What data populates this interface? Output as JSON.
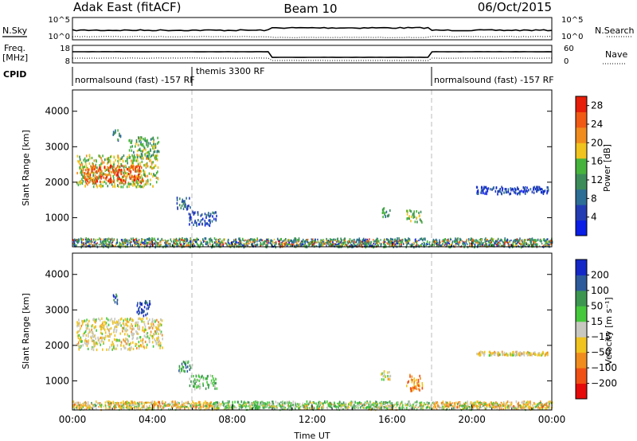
{
  "header": {
    "station": "Adak East (fitACF)",
    "beam": "Beam 10",
    "date": "06/Oct/2015"
  },
  "panels": {
    "nsky": {
      "left_label": "N.Sky",
      "right_label": "N.Search",
      "left_ticks": [
        "10^5",
        "10^0"
      ],
      "right_ticks": [
        "10^5",
        "10^0"
      ]
    },
    "freq": {
      "left_label": "Freq.",
      "left_unit": "[MHz]",
      "right_label": "Nave",
      "left_ticks": [
        "18",
        "8"
      ],
      "right_ticks": [
        "60",
        "0"
      ]
    },
    "cpid": {
      "label": "CPID",
      "segments": [
        {
          "name": "normalsound (fast) -157 RF",
          "start_hour": 0,
          "end_hour": 6
        },
        {
          "name": "themis 3300 RF",
          "start_hour": 6,
          "end_hour": 18
        },
        {
          "name": "normalsound (fast) -157 RF",
          "start_hour": 18,
          "end_hour": 24
        }
      ]
    }
  },
  "colors": {
    "power_scale": [
      "#0a1ee6",
      "#233cb4",
      "#2d6e96",
      "#3c8c5a",
      "#46b43c",
      "#f0c31e",
      "#f08c1e",
      "#f05a14",
      "#e61e0a"
    ],
    "velocity_scale": [
      "#e60a0a",
      "#f05014",
      "#f08c1e",
      "#f0c31e",
      "#c8c8c0",
      "#46c83c",
      "#3c9650",
      "#2d5a9b",
      "#1428c8"
    ]
  },
  "chart_data": [
    {
      "type": "heatmap",
      "name": "power",
      "xlabel": "",
      "ylabel": "Slant Range [km]",
      "xlim": [
        0,
        24
      ],
      "ylim": [
        180,
        4600
      ],
      "yticks": [
        1000,
        2000,
        3000,
        4000
      ],
      "colorbar": {
        "label": "Power [dB]",
        "ticks": [
          4,
          8,
          12,
          16,
          20,
          24,
          28
        ],
        "range": [
          0,
          30
        ]
      },
      "regions": [
        {
          "x0": 0.2,
          "x1": 4.3,
          "y0": 1900,
          "y1": 2800,
          "level": 0.55
        },
        {
          "x0": 0.5,
          "x1": 3.5,
          "y0": 2000,
          "y1": 2500,
          "level": 0.85
        },
        {
          "x0": 2.8,
          "x1": 4.3,
          "y0": 2700,
          "y1": 3300,
          "level": 0.45
        },
        {
          "x0": 2.0,
          "x1": 2.4,
          "y0": 3200,
          "y1": 3500,
          "level": 0.35
        },
        {
          "x0": 5.2,
          "x1": 5.9,
          "y0": 1250,
          "y1": 1600,
          "level": 0.25
        },
        {
          "x0": 5.8,
          "x1": 7.2,
          "y0": 800,
          "y1": 1200,
          "level": 0.2
        },
        {
          "x0": 15.4,
          "x1": 15.9,
          "y0": 1050,
          "y1": 1300,
          "level": 0.4
        },
        {
          "x0": 16.7,
          "x1": 17.5,
          "y0": 900,
          "y1": 1250,
          "level": 0.5
        },
        {
          "x0": 20.2,
          "x1": 23.8,
          "y0": 1700,
          "y1": 1900,
          "level": 0.15
        },
        {
          "x0": 0,
          "x1": 24,
          "y0": 200,
          "y1": 450,
          "level": 0.4
        }
      ]
    },
    {
      "type": "heatmap",
      "name": "velocity",
      "xlabel": "Time UT",
      "ylabel": "Slant Range [km]",
      "xlim": [
        0,
        24
      ],
      "ylim": [
        180,
        4600
      ],
      "xticks": [
        "00:00",
        "04:00",
        "08:00",
        "12:00",
        "16:00",
        "20:00",
        "00:00"
      ],
      "yticks": [
        1000,
        2000,
        3000,
        4000
      ],
      "colorbar": {
        "label": "Velocity [m s⁻¹]",
        "ticks": [
          -200,
          -100,
          -50,
          -15,
          15,
          50,
          100,
          200
        ],
        "range": [
          -250,
          250
        ]
      },
      "regions": [
        {
          "x0": 0.2,
          "x1": 4.5,
          "y0": 1900,
          "y1": 2800,
          "level": 0.45
        },
        {
          "x0": 3.2,
          "x1": 3.9,
          "y0": 2850,
          "y1": 3300,
          "level": 0.92
        },
        {
          "x0": 2.0,
          "x1": 2.3,
          "y0": 3200,
          "y1": 3500,
          "level": 0.85
        },
        {
          "x0": 5.3,
          "x1": 6.0,
          "y0": 1250,
          "y1": 1600,
          "level": 0.68
        },
        {
          "x0": 5.8,
          "x1": 7.2,
          "y0": 800,
          "y1": 1200,
          "level": 0.62
        },
        {
          "x0": 15.4,
          "x1": 15.9,
          "y0": 1050,
          "y1": 1300,
          "level": 0.45
        },
        {
          "x0": 16.7,
          "x1": 17.5,
          "y0": 750,
          "y1": 1200,
          "level": 0.28
        },
        {
          "x0": 20.2,
          "x1": 23.8,
          "y0": 1750,
          "y1": 1850,
          "level": 0.45
        },
        {
          "x0": 7.0,
          "x1": 18.0,
          "y0": 250,
          "y1": 450,
          "level": 0.62
        },
        {
          "x0": 0,
          "x1": 7.0,
          "y0": 250,
          "y1": 450,
          "level": 0.35
        },
        {
          "x0": 18.0,
          "x1": 24,
          "y0": 250,
          "y1": 450,
          "level": 0.35
        }
      ]
    }
  ]
}
